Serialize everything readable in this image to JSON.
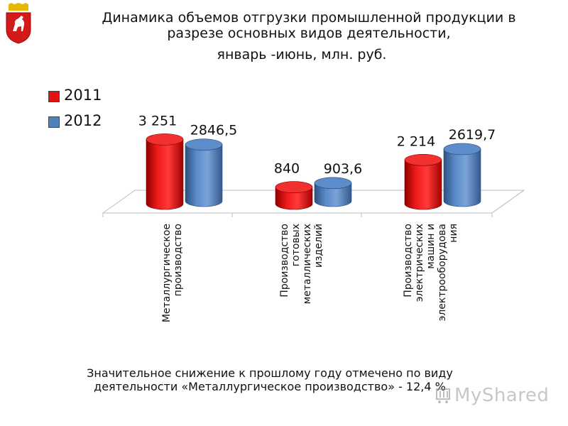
{
  "page": {
    "title_line1": "Динамика объемов отгрузки промышленной продукции в",
    "title_line2": "разрезе основных видов деятельности,",
    "title_line3": "январь -июнь, млн. руб.",
    "note_line1": "Значительное снижение к прошлому году отмечено по виду",
    "note_line2": "деятельности «Металлургическое производство» - 12,4 %",
    "watermark": "MyShared",
    "emblem": "coat-of-arms-icon"
  },
  "chart_data": {
    "type": "bar",
    "categories": [
      [
        "Металлургическое",
        "производство"
      ],
      [
        "Производство",
        "готовых",
        "металлических",
        "изделий"
      ],
      [
        "Производство",
        "электрических",
        "машин и",
        "электрооборудова",
        "ния"
      ]
    ],
    "series": [
      {
        "name": "2011",
        "values": [
          3251,
          840,
          2214
        ],
        "labels": [
          "3 251",
          "840",
          "2 214"
        ],
        "color": "#e01212"
      },
      {
        "name": "2012",
        "values": [
          2846.5,
          903.6,
          2619.7
        ],
        "labels": [
          "2846,5",
          "903,6",
          "2619,7"
        ],
        "color": "#4f81bd"
      }
    ],
    "legend": "top-left",
    "grid": false,
    "ylim": [
      0,
      3300
    ]
  }
}
